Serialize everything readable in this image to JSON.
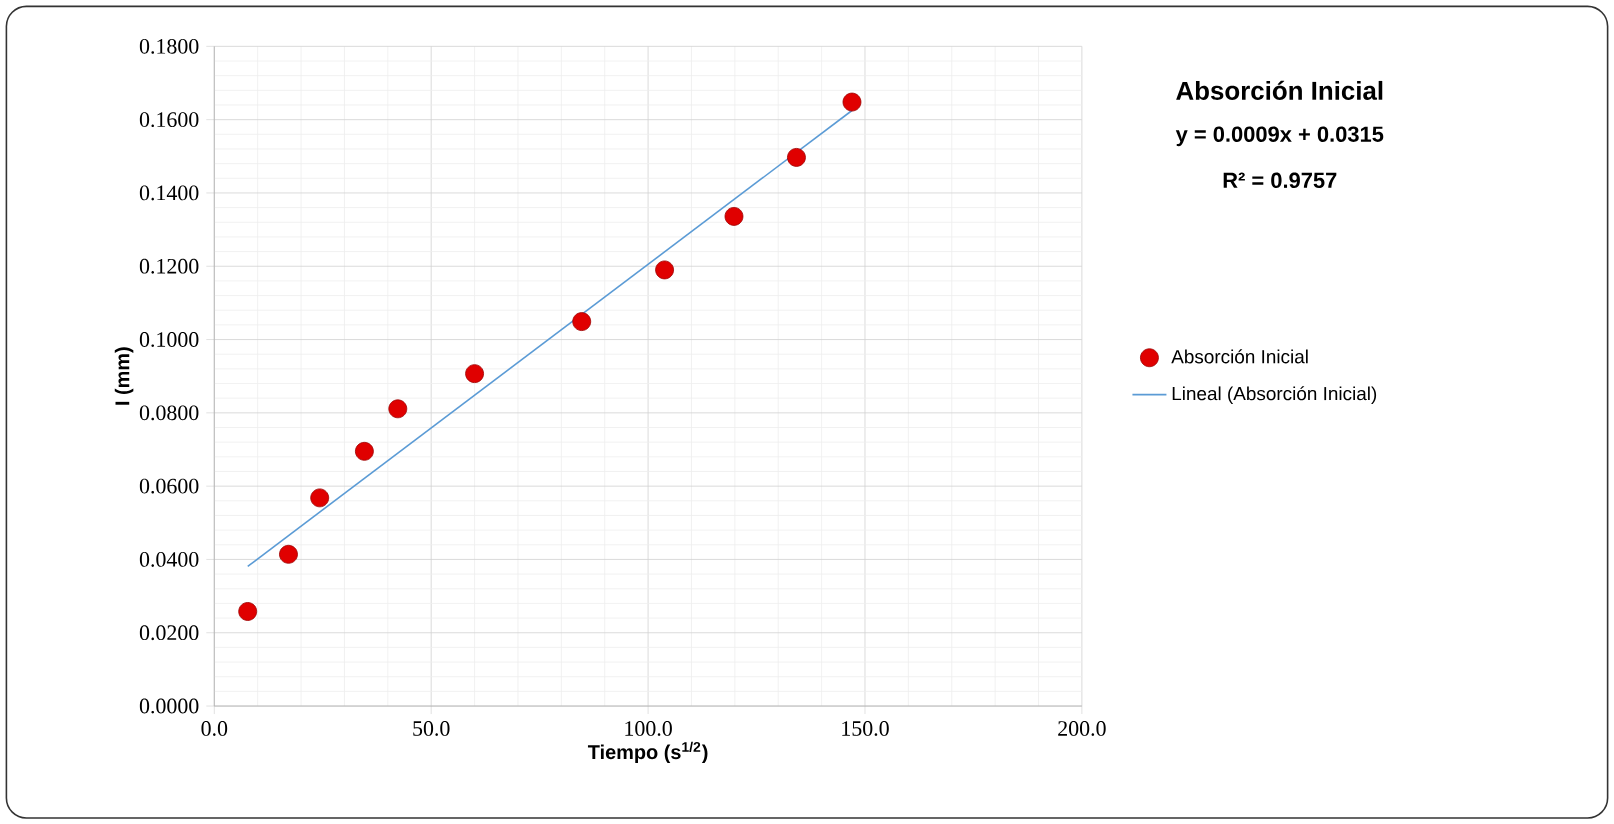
{
  "chart_data": {
    "type": "scatter",
    "xlabel": "Tiempo (s$^{1/2}$)",
    "ylabel": "I (mm)",
    "xlim": [
      0,
      200
    ],
    "ylim": [
      0,
      0.18
    ],
    "xticks": [
      {
        "value": 0,
        "label": "0.0"
      },
      {
        "value": 50,
        "label": "50.0"
      },
      {
        "value": 100,
        "label": "100.0"
      },
      {
        "value": 150,
        "label": "150.0"
      },
      {
        "value": 200,
        "label": "200.0"
      }
    ],
    "yticks": [
      {
        "value": 0,
        "label": "0.0000"
      },
      {
        "value": 0.02,
        "label": "0.0200"
      },
      {
        "value": 0.04,
        "label": "0.0400"
      },
      {
        "value": 0.06,
        "label": "0.0600"
      },
      {
        "value": 0.08,
        "label": "0.0800"
      },
      {
        "value": 0.1,
        "label": "0.1000"
      },
      {
        "value": 0.12,
        "label": "0.1200"
      },
      {
        "value": 0.14,
        "label": "0.1400"
      },
      {
        "value": 0.16,
        "label": "0.1600"
      },
      {
        "value": 0.18,
        "label": "0.1800"
      }
    ],
    "grid": true,
    "legend": "right",
    "marker": "circle",
    "annotations": [
      "Absorción Inicial",
      "y = 0.0009x + 0.0315",
      "R² = 0.9757"
    ],
    "series": [
      {
        "name": "Absorción Inicial",
        "color": "#e00000",
        "x": [
          7.7,
          17.1,
          24.3,
          34.6,
          42.3,
          60.0,
          84.7,
          103.8,
          119.8,
          134.2,
          147.0
        ],
        "values": [
          0.0258,
          0.0414,
          0.0568,
          0.0695,
          0.0811,
          0.0907,
          0.1049,
          0.119,
          0.1336,
          0.1497,
          0.1648
        ]
      },
      {
        "name": "Lineal (Absorción Inicial)",
        "type": "line",
        "marker": "none",
        "color": "#5b9bd5",
        "x": [
          7.7,
          147.0
        ],
        "values": [
          0.0381,
          0.1625
        ]
      }
    ]
  }
}
